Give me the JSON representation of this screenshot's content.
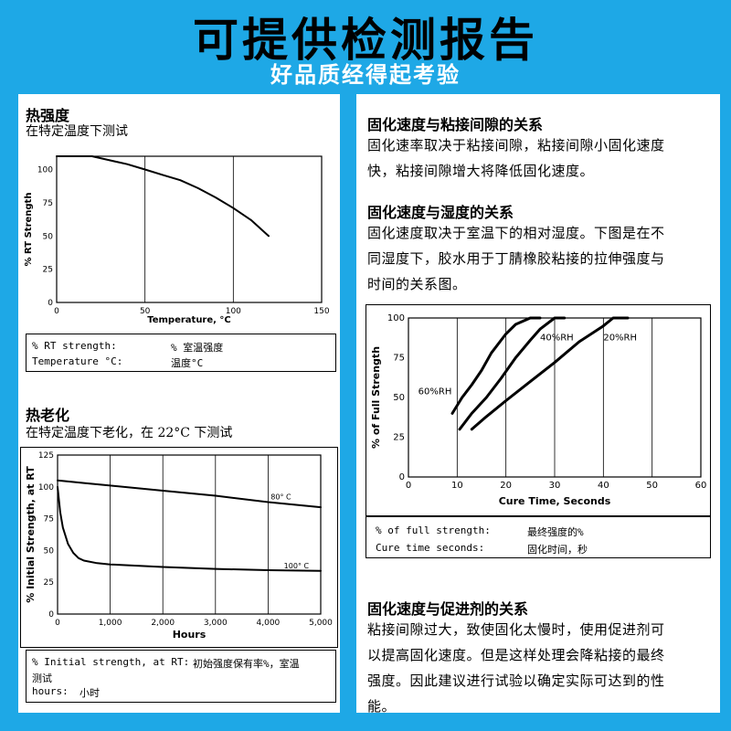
{
  "banner": {
    "title": "可提供检测报告",
    "subtitle": "好品质经得起考验"
  },
  "left": {
    "section1": {
      "heading": "热强度",
      "subheading": "在特定温度下测试",
      "legend": [
        [
          "% RT strength:",
          "% 室温强度"
        ],
        [
          "Temperature °C:",
          "温度°C"
        ]
      ]
    },
    "section2": {
      "heading": "热老化",
      "subheading": "在特定温度下老化，在 22°C 下测试",
      "legend": [
        [
          "% Initial strength, at RT:",
          "初始强度保有率%，室温"
        ],
        [
          "",
          "测试"
        ],
        [
          "hours:",
          "小时"
        ]
      ]
    }
  },
  "right": {
    "section1": {
      "heading": "固化速度与粘接间隙的关系",
      "lines": [
        "固化速率取决于粘接间隙，粘接间隙小固化速度",
        "快，粘接间隙增大将降低固化速度。"
      ]
    },
    "section2": {
      "heading": "固化速度与湿度的关系",
      "lines": [
        "固化速度取决于室温下的相对湿度。下图是在不",
        "同湿度下，胶水用于丁腈橡胶粘接的拉伸强度与",
        "时间的关系图。"
      ],
      "legend": [
        [
          "% of full strength:",
          "最终强度的%"
        ],
        [
          "Cure time seconds:",
          "固化时间，秒"
        ]
      ]
    },
    "section3": {
      "heading": "固化速度与促进剂的关系",
      "lines": [
        "粘接间隙过大，致使固化太慢时，使用促进剂可",
        "以提高固化速度。但是这样处理会降粘接的最终",
        "强度。因此建议进行试验以确定实际可达到的性",
        "能。"
      ]
    }
  },
  "chart_data": [
    {
      "type": "line",
      "title": "",
      "xlabel": "Temperature, °C",
      "ylabel": "% RT Strength",
      "xlim": [
        0,
        150
      ],
      "ylim": [
        0,
        110
      ],
      "xticks": [
        0,
        50,
        100,
        150
      ],
      "yticks": [
        0,
        25,
        50,
        75,
        100
      ],
      "grid": true,
      "series": [
        {
          "x": [
            0,
            10,
            20,
            30,
            40,
            50,
            60,
            70,
            80,
            90,
            100,
            110,
            120
          ],
          "y": [
            110,
            110,
            110,
            107,
            104,
            100,
            96,
            92,
            86,
            79,
            71,
            62,
            50
          ]
        }
      ]
    },
    {
      "type": "line",
      "title": "",
      "xlabel": "Hours",
      "ylabel": "% Initial Strength, at RT",
      "xlim": [
        0,
        5000
      ],
      "ylim": [
        0,
        125
      ],
      "xticks": [
        0,
        1000,
        2000,
        3000,
        4000,
        5000
      ],
      "yticks": [
        0,
        25,
        50,
        75,
        100,
        125
      ],
      "grid": true,
      "series": [
        {
          "name": "80° C",
          "x": [
            0,
            500,
            1000,
            2000,
            3000,
            4000,
            5000
          ],
          "y": [
            105,
            103,
            101,
            97,
            93,
            88,
            84
          ]
        },
        {
          "name": "100° C",
          "x": [
            0,
            50,
            100,
            200,
            300,
            400,
            500,
            750,
            1000,
            2000,
            3000,
            4000,
            5000
          ],
          "y": [
            100,
            80,
            68,
            55,
            48,
            44,
            42,
            40,
            39,
            37,
            35.5,
            34.5,
            34
          ]
        }
      ]
    },
    {
      "type": "line",
      "title": "",
      "xlabel": "Cure Time, Seconds",
      "ylabel": "% of Full Strength",
      "xlim": [
        0,
        60
      ],
      "ylim": [
        0,
        100
      ],
      "xticks": [
        0,
        10,
        20,
        30,
        40,
        50,
        60
      ],
      "yticks": [
        0,
        25,
        50,
        75,
        100
      ],
      "grid": true,
      "series": [
        {
          "name": "60%RH",
          "x": [
            9,
            11,
            13,
            15,
            17,
            20,
            22,
            25,
            27
          ],
          "y": [
            40,
            50,
            58,
            67,
            78,
            90,
            96,
            100,
            100
          ]
        },
        {
          "name": "40%RH",
          "x": [
            10.5,
            13,
            16,
            19,
            22,
            25,
            27,
            30,
            32
          ],
          "y": [
            30,
            40,
            50,
            62,
            75,
            86,
            93,
            100,
            100
          ]
        },
        {
          "name": "20%RH",
          "x": [
            13,
            16,
            20,
            25,
            30,
            35,
            40,
            42,
            45
          ],
          "y": [
            30,
            38,
            48,
            60,
            72,
            85,
            95,
            100,
            100
          ]
        }
      ]
    }
  ]
}
